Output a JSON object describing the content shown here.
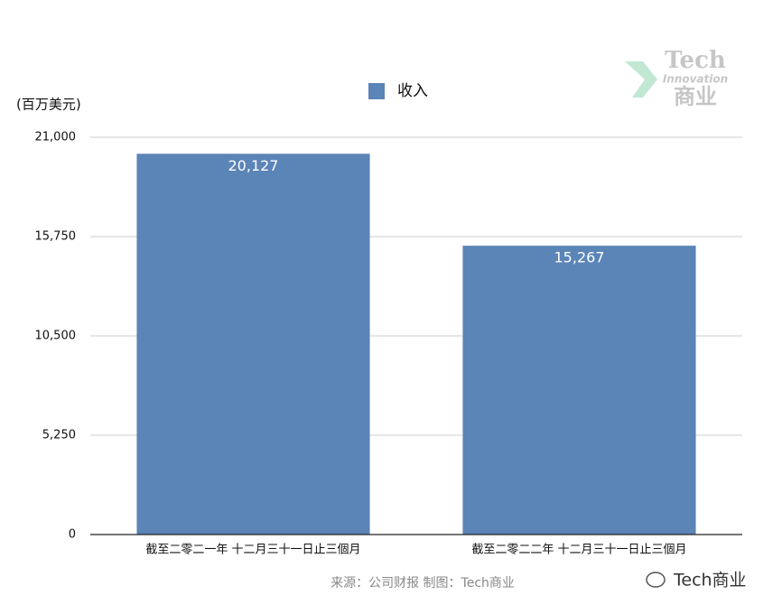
{
  "chart_data": {
    "type": "bar",
    "y_axis_label": "(百万美元)",
    "categories": [
      "截至二零二一年 十二月三十一日止三個月",
      "截至二零二二年 十二月三十一日止三個月"
    ],
    "series": [
      {
        "name": "收入",
        "color": "#5b84b7",
        "values": [
          20127,
          15267
        ],
        "value_labels": [
          "20,127",
          "15,267"
        ]
      }
    ],
    "ylim": [
      0,
      21000
    ],
    "yticks": [
      0,
      {
        "value": 5250,
        "label": "5,250"
      },
      {
        "value": 10500,
        "label": "10,500"
      },
      {
        "value": 15750,
        "label": "15,750"
      },
      {
        "value": 21000,
        "label": "21,000"
      }
    ],
    "grid": true,
    "legend": "top",
    "source": "来源：公司财报 制图：Tech商业",
    "watermark": {
      "title": "Tech",
      "subtitle": "Innovation",
      "name": "商业"
    },
    "brand": "Tech商业"
  }
}
